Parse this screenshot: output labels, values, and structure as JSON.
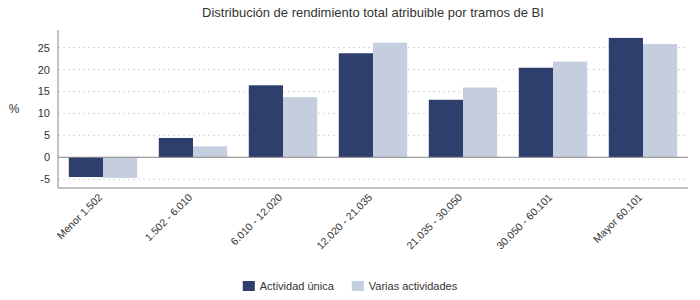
{
  "chart_data": {
    "type": "bar",
    "title": "Distribución de rendimiento total atribuible por tramos de BI",
    "ylabel": "%",
    "categories": [
      "Menor 1.502",
      "1.502 - 6.010",
      "6.010 - 12.020",
      "12.020 - 21.035",
      "21.035 - 30.050",
      "30.050 - 60.101",
      "Mayor 60.101"
    ],
    "series": [
      {
        "name": "Actividad única",
        "color": "#2E3F6E",
        "values": [
          -4.5,
          4.4,
          16.4,
          23.7,
          13.1,
          20.4,
          27.2
        ]
      },
      {
        "name": "Varias actividades",
        "color": "#C5CEDE",
        "values": [
          -4.7,
          2.5,
          13.7,
          26.1,
          15.9,
          21.8,
          25.8
        ]
      }
    ],
    "ylim": [
      -7,
      29
    ],
    "yticks": [
      -5,
      0,
      5,
      10,
      15,
      20,
      25
    ],
    "grid": true,
    "legend": "bottom"
  }
}
